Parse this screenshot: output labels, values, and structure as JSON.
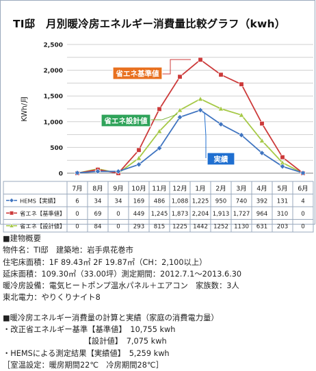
{
  "title": "TI邸　月別暖冷房エネルギー消費量比較グラフ（kwh）",
  "chart_data": {
    "type": "line",
    "ylabel": "KWh/月",
    "ylim": [
      0,
      2500
    ],
    "yticks": [
      0,
      250,
      500,
      750,
      1000,
      1250,
      1500,
      1750,
      2000,
      2250,
      2500
    ],
    "ytick_labels": [
      "0",
      "",
      "500",
      "",
      "1,000",
      "",
      "1,500",
      "",
      "2,000",
      "",
      "2,500"
    ],
    "grid": true,
    "categories": [
      "7月",
      "8月",
      "9月",
      "10月",
      "11月",
      "12月",
      "1月",
      "2月",
      "3月",
      "4月",
      "5月",
      "6月"
    ],
    "series": [
      {
        "name": "HEMS【実績】",
        "color": "#3f74c0",
        "marker": "diamond",
        "values": [
          6,
          34,
          34,
          169,
          486,
          1088,
          1225,
          950,
          740,
          392,
          131,
          4
        ],
        "labels": [
          "6",
          "34",
          "34",
          "169",
          "486",
          "1,088",
          "1,225",
          "950",
          "740",
          "392",
          "131",
          "4"
        ]
      },
      {
        "name": "省エネ【基準値】",
        "color": "#cc3a3a",
        "marker": "square",
        "values": [
          0,
          69,
          0,
          449,
          1245,
          1873,
          2204,
          1913,
          1727,
          964,
          310,
          0
        ],
        "labels": [
          "0",
          "69",
          "0",
          "449",
          "1,245",
          "1,873",
          "2,204",
          "1,913",
          "1,727",
          "964",
          "310",
          "0"
        ]
      },
      {
        "name": "省エネ【設計値】",
        "color": "#a6c947",
        "marker": "triangle",
        "values": [
          0,
          84,
          0,
          293,
          815,
          1225,
          1442,
          1252,
          1130,
          631,
          203,
          0
        ],
        "labels": [
          "0",
          "84",
          "0",
          "293",
          "815",
          "1225",
          "1442",
          "1252",
          "1130",
          "631",
          "203",
          "0"
        ]
      }
    ],
    "annotations": [
      {
        "text": "省エネ基準値",
        "color": "#e8701f"
      },
      {
        "text": "省エネ設計値",
        "color": "#2fa35a"
      },
      {
        "text": "実績",
        "color": "#1f6fd0"
      }
    ]
  },
  "info": {
    "lines": [
      "■建物概要",
      "物件名：TI邸　建築地：岩手県花巻市",
      "住宅床面積：1F 89.43㎡  2F 19.87㎡（CH：2,100以上）",
      "延床面積：109.30㎡（33.00坪）測定期間：2012.7.1～2013.6.30",
      "暖冷房設備：電気ヒートポンプ温水パネル＋エアコン　家族数：3人",
      "東北電力：やりくりナイト8",
      "",
      "■暖冷房エネルギー消費量の計算と実績（家庭の消費電力量）",
      "・改正省エネルギー基準【基準値】　10,755 kwh",
      "　　　　　　　　　　　【設計値】　7,075 kwh",
      "・HEMSによる測定結果【実績値】　5,259 kwh",
      "［室温設定：暖房期間22℃　冷房期間28℃］"
    ]
  }
}
